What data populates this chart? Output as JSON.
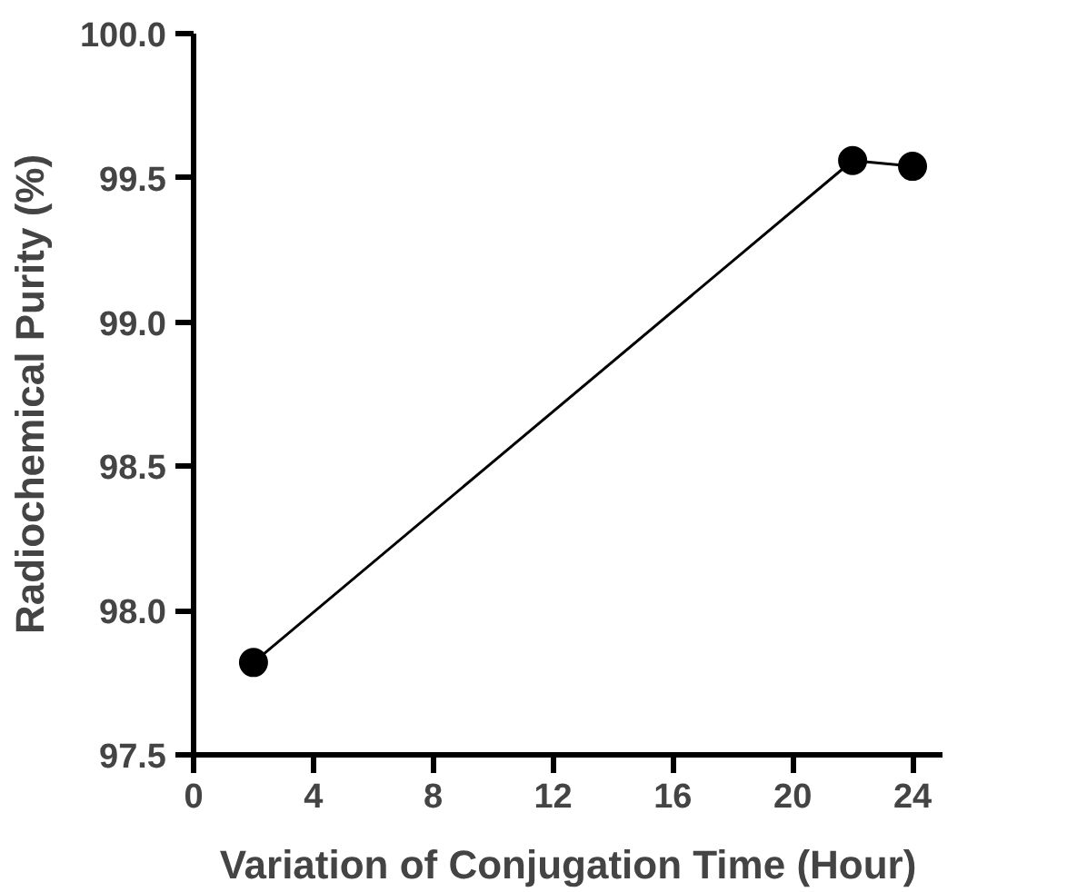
{
  "chart_data": {
    "type": "line",
    "xlabel": "Variation of Conjugation Time (Hour)",
    "ylabel": "Radiochemical Purity (%)",
    "x": [
      2,
      22,
      24
    ],
    "series": [
      {
        "color": "#000000",
        "values": [
          97.82,
          99.56,
          99.54
        ]
      }
    ],
    "xlim": [
      0,
      25
    ],
    "xticks": [
      0,
      4,
      8,
      12,
      16,
      20,
      24
    ],
    "ylim": [
      97.5,
      100.0
    ],
    "yticks": [
      {
        "value": 97.5,
        "label": "97.5"
      },
      {
        "value": 98.0,
        "label": "98.0"
      },
      {
        "value": 98.5,
        "label": "98.5"
      },
      {
        "value": 99.0,
        "label": "99.0"
      },
      {
        "value": 99.5,
        "label": "99.5"
      },
      {
        "value": 100.0,
        "label": "100.0"
      }
    ],
    "grid": false,
    "marker": "circle",
    "line_style": "solid"
  }
}
